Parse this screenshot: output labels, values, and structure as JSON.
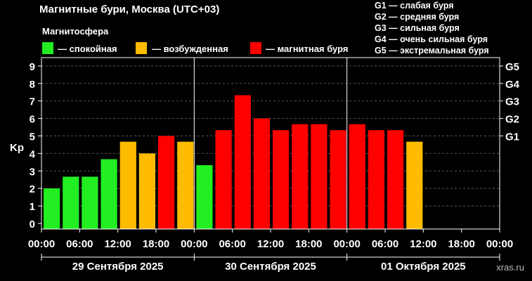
{
  "title": "Магнитные бури, Москва (UTC+03)",
  "legend": {
    "heading": "Магнитосфера",
    "items": [
      {
        "label": "— спокойная",
        "color": "#22ee22"
      },
      {
        "label": "— возбужденная",
        "color": "#ffbb00"
      },
      {
        "label": "— магнитная буря",
        "color": "#ff0000"
      }
    ]
  },
  "storm_levels": [
    "G1 — слабая буря",
    "G2 — средняя буря",
    "G3 — сильная буря",
    "G4 — очень сильная буря",
    "G5 — экстремальная буря"
  ],
  "watermark": "xras.ru",
  "chart_data": {
    "type": "bar",
    "ylabel": "Kp",
    "ylim": [
      0,
      9.5
    ],
    "y_ticks": [
      "0",
      "1",
      "2",
      "3",
      "4",
      "5",
      "6",
      "7",
      "8",
      "9"
    ],
    "g_ticks": [
      {
        "label": "G1",
        "kp": 5
      },
      {
        "label": "G2",
        "kp": 6
      },
      {
        "label": "G3",
        "kp": 7
      },
      {
        "label": "G4",
        "kp": 8
      },
      {
        "label": "G5",
        "kp": 9
      }
    ],
    "x_tick_labels": [
      "00:00",
      "06:00",
      "12:00",
      "18:00",
      "00:00",
      "06:00",
      "12:00",
      "18:00",
      "00:00",
      "06:00",
      "12:00",
      "18:00",
      "00:00"
    ],
    "days": [
      "29 Сентября 2025",
      "30 Сентября 2025",
      "01 Октября 2025"
    ],
    "bin_hours": 3,
    "values": [
      2.0,
      2.67,
      2.67,
      3.67,
      4.67,
      4.0,
      5.0,
      4.67,
      3.33,
      5.33,
      7.33,
      6.0,
      5.33,
      5.67,
      5.67,
      5.33,
      5.67,
      5.33,
      5.33,
      4.67
    ],
    "categories": [
      "quiet",
      "quiet",
      "quiet",
      "quiet",
      "active",
      "active",
      "storm",
      "active",
      "quiet",
      "storm",
      "storm",
      "storm",
      "storm",
      "storm",
      "storm",
      "storm",
      "storm",
      "storm",
      "storm",
      "active"
    ],
    "grid": true
  }
}
